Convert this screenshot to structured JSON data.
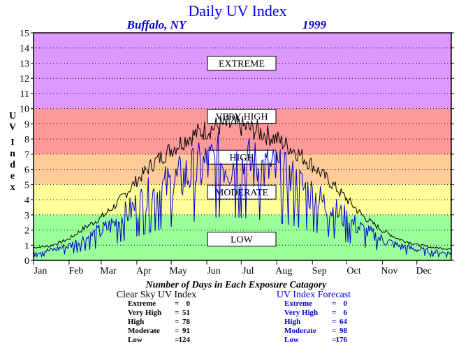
{
  "chart_data": {
    "type": "line",
    "title": "Daily UV Index",
    "location": "Buffalo, NY",
    "year": "1999",
    "ylabel": "UV Index",
    "ylim": [
      0,
      15
    ],
    "yticks": [
      0,
      1,
      2,
      3,
      4,
      5,
      6,
      7,
      8,
      9,
      10,
      11,
      12,
      13,
      14,
      15
    ],
    "xlim": [
      1,
      365
    ],
    "months": [
      "Jan",
      "Feb",
      "Mar",
      "Apr",
      "May",
      "Jun",
      "Jul",
      "Aug",
      "Sep",
      "Oct",
      "Nov",
      "Dec"
    ],
    "grid": true,
    "bands": [
      {
        "label": "LOW",
        "from": 0,
        "to": 3,
        "color": "#99ff99"
      },
      {
        "label": "MODERATE",
        "from": 3,
        "to": 5,
        "color": "#ffff99"
      },
      {
        "label": "HIGH",
        "from": 5,
        "to": 7,
        "color": "#ffcc99"
      },
      {
        "label": "VERY HIGH",
        "from": 7,
        "to": 10,
        "color": "#ff9999"
      },
      {
        "label": "EXTREME",
        "from": 10,
        "to": 15,
        "color": "#dd99ff"
      }
    ],
    "series": [
      {
        "name": "Clear Sky UV Index",
        "color": "#000000",
        "envelope": [
          [
            1,
            0.9
          ],
          [
            15,
            1.0
          ],
          [
            32,
            1.5
          ],
          [
            46,
            2.3
          ],
          [
            60,
            3.0
          ],
          [
            74,
            4.0
          ],
          [
            91,
            5.6
          ],
          [
            105,
            6.8
          ],
          [
            121,
            7.8
          ],
          [
            135,
            8.6
          ],
          [
            152,
            9.2
          ],
          [
            166,
            9.5
          ],
          [
            182,
            9.4
          ],
          [
            196,
            9.1
          ],
          [
            213,
            8.5
          ],
          [
            227,
            7.8
          ],
          [
            244,
            6.7
          ],
          [
            258,
            5.6
          ],
          [
            274,
            4.3
          ],
          [
            288,
            3.1
          ],
          [
            305,
            2.1
          ],
          [
            319,
            1.5
          ],
          [
            335,
            1.1
          ],
          [
            349,
            0.9
          ],
          [
            365,
            0.8
          ]
        ]
      },
      {
        "name": "UV Index Forecast",
        "color": "#0000cc",
        "envelope": [
          [
            1,
            0.7
          ],
          [
            15,
            0.8
          ],
          [
            32,
            1.2
          ],
          [
            46,
            1.8
          ],
          [
            60,
            2.4
          ],
          [
            74,
            3.2
          ],
          [
            91,
            4.5
          ],
          [
            105,
            5.5
          ],
          [
            121,
            6.3
          ],
          [
            135,
            7.0
          ],
          [
            152,
            7.8
          ],
          [
            166,
            8.2
          ],
          [
            182,
            8.0
          ],
          [
            196,
            7.7
          ],
          [
            213,
            7.2
          ],
          [
            227,
            6.5
          ],
          [
            244,
            5.4
          ],
          [
            258,
            4.4
          ],
          [
            274,
            3.4
          ],
          [
            288,
            2.5
          ],
          [
            305,
            1.7
          ],
          [
            319,
            1.2
          ],
          [
            335,
            0.9
          ],
          [
            349,
            0.7
          ],
          [
            365,
            0.6
          ]
        ]
      }
    ]
  },
  "summary": {
    "heading": "Number of Days in Each Exposure Catagory",
    "clear_sky": {
      "title": "Clear Sky UV Index",
      "rows": [
        {
          "label": "Extreme",
          "eq": "=",
          "value": "0"
        },
        {
          "label": "Very High",
          "eq": "=",
          "value": "51"
        },
        {
          "label": "High",
          "eq": "=",
          "value": "78"
        },
        {
          "label": "Moderate",
          "eq": "=",
          "value": "91"
        },
        {
          "label": "Low",
          "eq": "=",
          "value": "124"
        }
      ]
    },
    "forecast": {
      "title": "UV Index Forecast",
      "rows": [
        {
          "label": "Extreme",
          "eq": "=",
          "value": "0"
        },
        {
          "label": "Very High",
          "eq": "=",
          "value": "6"
        },
        {
          "label": "High",
          "eq": "=",
          "value": "64"
        },
        {
          "label": "Moderate",
          "eq": "=",
          "value": "98"
        },
        {
          "label": "Low",
          "eq": "=",
          "value": "176"
        }
      ]
    }
  }
}
